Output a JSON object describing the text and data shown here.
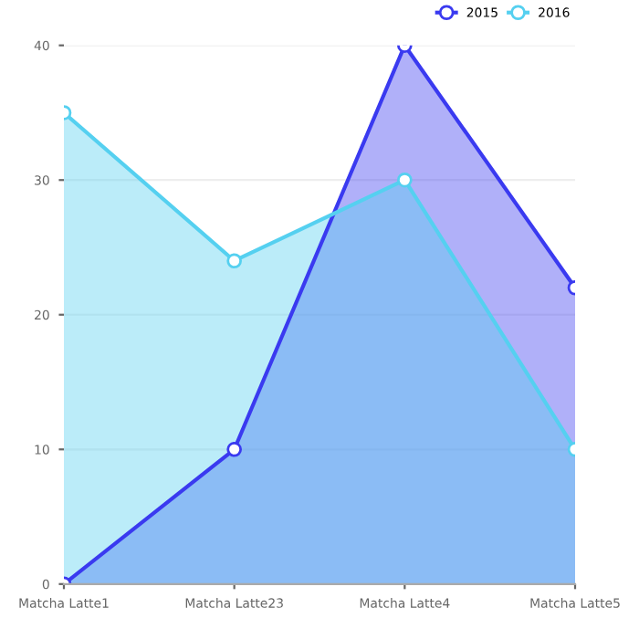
{
  "chart_data": {
    "type": "area",
    "categories": [
      "Matcha Latte1",
      "Matcha Latte23",
      "Matcha Latte4",
      "Matcha Latte5"
    ],
    "series": [
      {
        "name": "2015",
        "color": "#3a3af0",
        "values": [
          0,
          10,
          40,
          22
        ]
      },
      {
        "name": "2016",
        "color": "#55d0f0",
        "values": [
          35,
          24,
          30,
          10
        ]
      }
    ],
    "ylim": [
      0,
      40
    ],
    "yticks": [
      0,
      10,
      20,
      30,
      40
    ],
    "grid": "y",
    "legend": "top right",
    "marker": "circle",
    "line_style": "solid"
  }
}
